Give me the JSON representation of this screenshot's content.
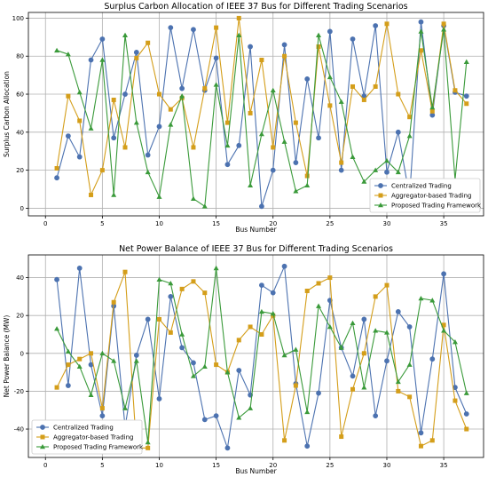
{
  "chart_data": [
    {
      "type": "line",
      "title": "Surplus Carbon Allocation of IEEE 37 Bus for Different Trading Scenarios",
      "xlabel": "Bus Number",
      "ylabel": "Surplus Carbon Allocation",
      "xlim": [
        -1.5,
        38.5
      ],
      "ylim": [
        -4,
        103
      ],
      "xticks": [
        0,
        5,
        10,
        15,
        20,
        25,
        30,
        35
      ],
      "yticks": [
        0,
        20,
        40,
        60,
        80,
        100
      ],
      "grid": true,
      "legend_position": "lower right",
      "x": [
        1,
        2,
        3,
        4,
        5,
        6,
        7,
        8,
        9,
        10,
        11,
        12,
        13,
        14,
        15,
        16,
        17,
        18,
        19,
        20,
        21,
        22,
        23,
        24,
        25,
        26,
        27,
        28,
        29,
        30,
        31,
        32,
        33,
        34,
        35,
        36,
        37
      ],
      "series": [
        {
          "name": "Centralized Trading",
          "color": "#4c72b0",
          "marker": "circle",
          "values": [
            16,
            38,
            27,
            78,
            89,
            37,
            60,
            82,
            28,
            43,
            95,
            63,
            94,
            62,
            79,
            23,
            33,
            85,
            1,
            20,
            86,
            24,
            68,
            37,
            93,
            20,
            89,
            59,
            96,
            19,
            40,
            6,
            98,
            49,
            96,
            61,
            59
          ]
        },
        {
          "name": "Aggregator-based Trading",
          "color": "#d49e1a",
          "marker": "square",
          "values": [
            21,
            59,
            46,
            7,
            20,
            57,
            32,
            79,
            87,
            60,
            52,
            58,
            32,
            63,
            95,
            45,
            100,
            50,
            78,
            32,
            80,
            45,
            17,
            85,
            54,
            24,
            64,
            57,
            64,
            97,
            60,
            48,
            83,
            51,
            97,
            62,
            55
          ]
        },
        {
          "name": "Proposed Trading Framework",
          "color": "#3a9a3a",
          "marker": "triangle",
          "values": [
            83,
            81,
            61,
            42,
            78,
            7,
            91,
            45,
            19,
            6,
            44,
            59,
            5,
            1,
            65,
            33,
            91,
            12,
            39,
            62,
            35,
            9,
            12,
            91,
            69,
            56,
            27,
            14,
            20,
            25,
            19,
            38,
            93,
            53,
            94,
            15,
            77
          ]
        }
      ]
    },
    {
      "type": "line",
      "title": "Net Power Balance of IEEE 37 Bus for Different Trading Scenarios",
      "xlabel": "Bus Number",
      "ylabel": "Net Power Balance (MW)",
      "xlim": [
        -1.5,
        38.5
      ],
      "ylim": [
        -55,
        52
      ],
      "xticks": [
        0,
        5,
        10,
        15,
        20,
        25,
        30,
        35
      ],
      "yticks": [
        -40,
        -20,
        0,
        20,
        40
      ],
      "grid": true,
      "legend_position": "lower left",
      "x": [
        1,
        2,
        3,
        4,
        5,
        6,
        7,
        8,
        9,
        10,
        11,
        12,
        13,
        14,
        15,
        16,
        17,
        18,
        19,
        20,
        21,
        22,
        23,
        24,
        25,
        26,
        27,
        28,
        29,
        30,
        31,
        32,
        33,
        34,
        35,
        36,
        37
      ],
      "series": [
        {
          "name": "Centralized Trading",
          "color": "#4c72b0",
          "marker": "circle",
          "values": [
            39,
            -17,
            45,
            -6,
            -33,
            25,
            -39,
            -1,
            18,
            -24,
            30,
            3,
            -5,
            -35,
            -33,
            -50,
            -9,
            -22,
            36,
            32,
            46,
            -16,
            -49,
            -21,
            28,
            3,
            -12,
            18,
            -33,
            -4,
            22,
            14,
            -42,
            -3,
            42,
            -18,
            -32
          ]
        },
        {
          "name": "Aggregator-based Trading",
          "color": "#d49e1a",
          "marker": "square",
          "values": [
            -18,
            -6,
            -3,
            0,
            -29,
            27,
            43,
            -50,
            -50,
            18,
            11,
            34,
            38,
            32,
            -6,
            -10,
            7,
            14,
            10,
            20,
            -46,
            -17,
            33,
            37,
            40,
            -44,
            -19,
            0,
            30,
            36,
            -20,
            -23,
            -49,
            -46,
            15,
            -25,
            -40
          ]
        },
        {
          "name": "Proposed Trading Framework",
          "color": "#3a9a3a",
          "marker": "triangle",
          "values": [
            13,
            1,
            -7,
            -22,
            0,
            -4,
            -29,
            -4,
            -47,
            39,
            37,
            10,
            -12,
            -7,
            45,
            -10,
            -34,
            -29,
            22,
            21,
            -1,
            2,
            -31,
            25,
            14,
            3,
            16,
            -18,
            12,
            11,
            -15,
            -6,
            29,
            28,
            12,
            6,
            -21
          ]
        }
      ]
    }
  ]
}
